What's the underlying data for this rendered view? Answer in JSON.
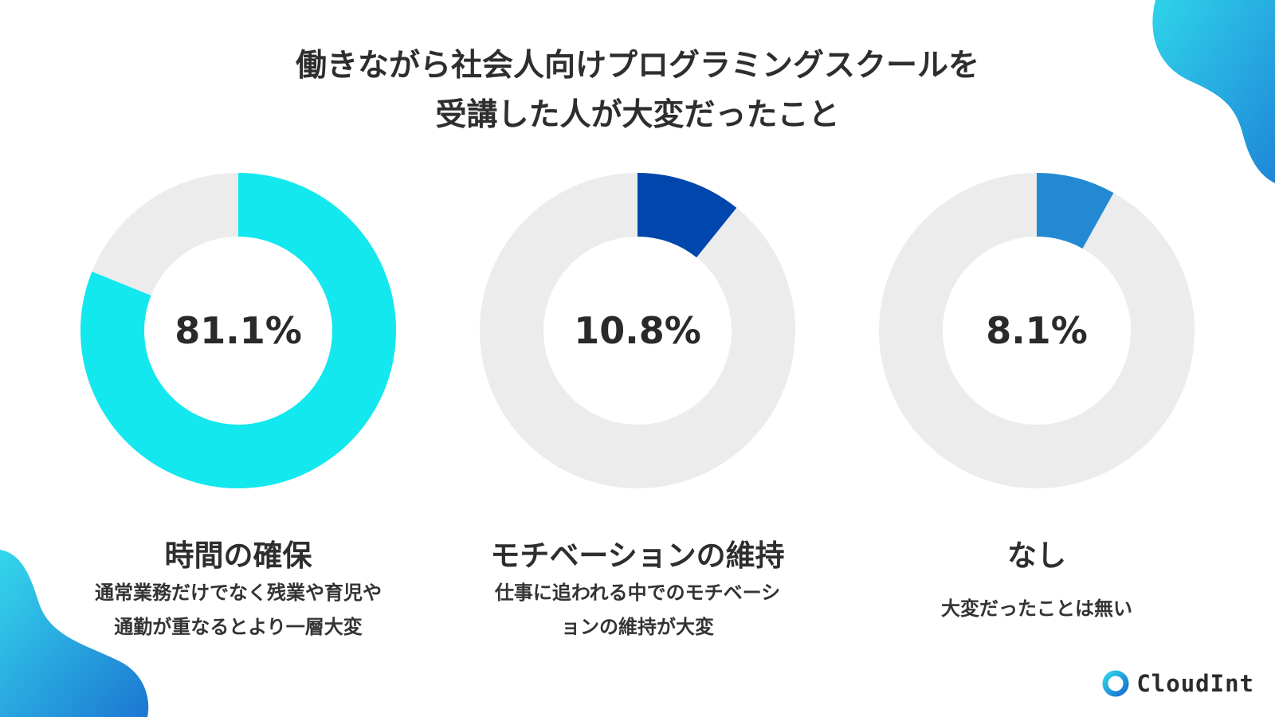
{
  "title": {
    "line1": "働きながら社会人向けプログラミングスクールを",
    "line2": "受講した人が大変だったこと"
  },
  "colors": {
    "track": "#ececec",
    "accent1": "#12e8ee",
    "accent2": "#0047ad",
    "accent3": "#2489d3",
    "blob_top": "#2ecfea",
    "blob_bottom": "#1f7fd6"
  },
  "chart_data": [
    {
      "type": "pie",
      "values": [
        81.1,
        18.9
      ],
      "center_label": "81.1%",
      "label": "時間の確保",
      "description": [
        "通常業務だけでなく残業や育児や",
        "通勤が重なるとより一層大変"
      ]
    },
    {
      "type": "pie",
      "values": [
        10.8,
        89.2
      ],
      "center_label": "10.8%",
      "label": "モチベーションの維持",
      "description": [
        "仕事に追われる中でのモチベーシ",
        "ョンの維持が大変"
      ]
    },
    {
      "type": "pie",
      "values": [
        8.1,
        91.9
      ],
      "center_label": "8.1%",
      "label": "なし",
      "description": [
        "大変だったことは無い"
      ]
    }
  ],
  "logo": {
    "text": "CloudInt",
    "icon": "cloudint-ring-icon"
  }
}
